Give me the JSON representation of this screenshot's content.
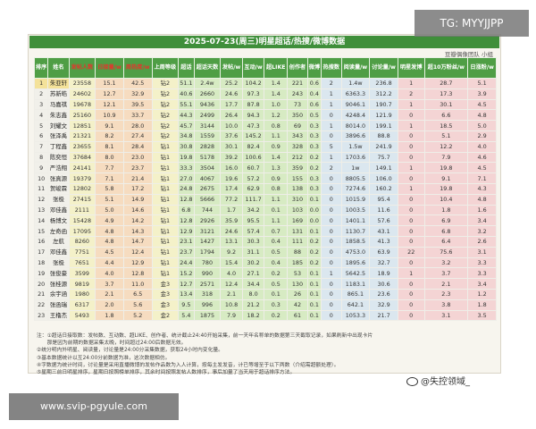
{
  "header": {
    "title": "2025-07-23(周三)明星超话/热搜/微博数据",
    "subtitle": "豆瓣偶像团队 小组"
  },
  "table": {
    "columns": [
      "排序",
      "姓名",
      "发帖人数",
      "日接量/w",
      "周热度/w",
      "上周等级",
      "超话",
      "超话天数",
      "发帖/w",
      "互动/w",
      "超LIKE",
      "创作者",
      "微博",
      "热搜数",
      "阅读量/w",
      "讨论量/w",
      "明星发博",
      "超10万粉丝/w",
      "日涨粉/w"
    ],
    "rows": [
      [
        "1",
        "朱亚轩",
        "23558",
        "15.1",
        "42.5",
        "钻2",
        "51.1",
        "2.4w",
        "25.2",
        "104.2",
        "1.4",
        "221",
        "0.6",
        "2",
        "1.4w",
        "236.8",
        "1",
        "28.7",
        "5.1"
      ],
      [
        "2",
        "苏新皓",
        "24602",
        "12.7",
        "32.9",
        "钻2",
        "40.6",
        "2660",
        "24.6",
        "97.3",
        "1.4",
        "243",
        "0.4",
        "1",
        "6363.3",
        "312.2",
        "2",
        "17.3",
        "3.9"
      ],
      [
        "3",
        "马嘉祺",
        "19678",
        "12.1",
        "39.5",
        "钻2",
        "55.1",
        "9436",
        "17.7",
        "87.8",
        "1.0",
        "73",
        "0.6",
        "1",
        "9046.1",
        "190.7",
        "1",
        "30.1",
        "4.5"
      ],
      [
        "4",
        "朱志鑫",
        "25160",
        "10.9",
        "33.7",
        "钻2",
        "44.3",
        "2499",
        "26.4",
        "94.3",
        "1.2",
        "350",
        "0.5",
        "0",
        "4248.4",
        "121.9",
        "0",
        "6.6",
        "4.8"
      ],
      [
        "5",
        "刘耀文",
        "12851",
        "9.1",
        "28.0",
        "钻2",
        "45.7",
        "3144",
        "10.0",
        "47.3",
        "0.8",
        "69",
        "0.3",
        "1",
        "8014.0",
        "199.1",
        "1",
        "18.5",
        "5.0"
      ],
      [
        "6",
        "张泽禹",
        "21321",
        "8.2",
        "27.4",
        "钻2",
        "34.8",
        "1559",
        "37.6",
        "145.2",
        "1.1",
        "343",
        "0.3",
        "0",
        "3896.6",
        "88.8",
        "0",
        "5.1",
        "2.9"
      ],
      [
        "7",
        "丁程鑫",
        "23655",
        "8.1",
        "28.4",
        "钻1",
        "30.8",
        "2828",
        "30.1",
        "82.4",
        "0.9",
        "328",
        "0.3",
        "5",
        "1.5w",
        "241.9",
        "0",
        "12.2",
        "4.0"
      ],
      [
        "8",
        "陈奕恒",
        "37684",
        "8.0",
        "23.0",
        "钻1",
        "19.8",
        "5178",
        "39.2",
        "100.6",
        "1.4",
        "212",
        "0.2",
        "1",
        "1703.6",
        "75.7",
        "0",
        "7.9",
        "4.6"
      ],
      [
        "9",
        "严浩翔",
        "24141",
        "7.7",
        "23.7",
        "钻1",
        "33.3",
        "3504",
        "16.0",
        "60.7",
        "1.3",
        "359",
        "0.2",
        "2",
        "1w",
        "149.1",
        "1",
        "19.8",
        "4.5"
      ],
      [
        "10",
        "张真源",
        "19379",
        "7.1",
        "21.4",
        "钻1",
        "27.0",
        "4067",
        "19.6",
        "57.2",
        "0.9",
        "155",
        "0.3",
        "0",
        "8805.5",
        "106.0",
        "0",
        "9.1",
        "7.1"
      ],
      [
        "11",
        "贺峻霖",
        "12802",
        "5.8",
        "17.2",
        "钻1",
        "24.8",
        "2675",
        "17.4",
        "62.9",
        "0.8",
        "138",
        "0.3",
        "0",
        "7274.6",
        "160.2",
        "1",
        "19.8",
        "4.3"
      ],
      [
        "12",
        "张极",
        "27415",
        "5.1",
        "14.9",
        "钻1",
        "12.8",
        "5666",
        "77.2",
        "111.7",
        "1.1",
        "310",
        "0.1",
        "0",
        "1015.9",
        "95.4",
        "0",
        "10.4",
        "4.8"
      ],
      [
        "13",
        "邓佳鑫",
        "2111",
        "5.0",
        "14.6",
        "钻1",
        "6.8",
        "744",
        "1.7",
        "34.2",
        "0.1",
        "103",
        "0.0",
        "0",
        "1003.5",
        "11.6",
        "0",
        "1.8",
        "1.6"
      ],
      [
        "14",
        "杨博文",
        "15428",
        "4.9",
        "14.2",
        "钻1",
        "12.8",
        "2926",
        "35.9",
        "95.5",
        "1.1",
        "169",
        "0.0",
        "0",
        "1401.1",
        "57.6",
        "0",
        "6.9",
        "3.4"
      ],
      [
        "15",
        "左奇函",
        "17095",
        "4.8",
        "14.3",
        "钻1",
        "12.9",
        "3121",
        "24.6",
        "57.4",
        "0.7",
        "131",
        "0.1",
        "0",
        "1130.7",
        "43.1",
        "0",
        "6.8",
        "3.2"
      ],
      [
        "16",
        "左航",
        "8260",
        "4.8",
        "14.7",
        "钻1",
        "23.1",
        "1427",
        "13.1",
        "30.3",
        "0.4",
        "111",
        "0.2",
        "0",
        "1858.5",
        "41.3",
        "0",
        "6.4",
        "2.6"
      ],
      [
        "17",
        "邓佳鑫",
        "7751",
        "4.5",
        "12.4",
        "钻1",
        "23.7",
        "1794",
        "9.2",
        "31.1",
        "0.5",
        "88",
        "0.2",
        "0",
        "4753.0",
        "63.9",
        "22",
        "75.6",
        "3.1"
      ],
      [
        "18",
        "张极",
        "7651",
        "4.4",
        "12.9",
        "钻1",
        "24.4",
        "780",
        "15.4",
        "30.2",
        "0.4",
        "185",
        "0.2",
        "0",
        "1895.6",
        "32.7",
        "0",
        "3.2",
        "3.3"
      ],
      [
        "19",
        "张俊豪",
        "3599",
        "4.0",
        "12.8",
        "钻1",
        "15.2",
        "990",
        "4.0",
        "27.1",
        "0.2",
        "53",
        "0.1",
        "1",
        "5642.5",
        "18.9",
        "1",
        "3.7",
        "3.3"
      ],
      [
        "20",
        "张桂源",
        "9819",
        "3.7",
        "11.0",
        "金3",
        "12.7",
        "2571",
        "12.4",
        "34.4",
        "0.5",
        "130",
        "0.1",
        "0",
        "1183.1",
        "30.6",
        "0",
        "2.1",
        "3.4"
      ],
      [
        "21",
        "余宇涵",
        "1980",
        "2.1",
        "6.5",
        "金3",
        "13.4",
        "318",
        "2.1",
        "8.0",
        "0.1",
        "26",
        "0.1",
        "0",
        "865.1",
        "23.6",
        "0",
        "2.3",
        "1.2"
      ],
      [
        "22",
        "张函瑞",
        "6317",
        "2.0",
        "5.6",
        "金3",
        "9.5",
        "996",
        "10.8",
        "21.2",
        "0.3",
        "42",
        "0.1",
        "0",
        "642.1",
        "32.9",
        "0",
        "3.8",
        "1.8"
      ],
      [
        "23",
        "王橹杰",
        "5493",
        "1.8",
        "5.2",
        "金2",
        "5.4",
        "1875",
        "7.9",
        "18.2",
        "0.2",
        "61",
        "0.1",
        "0",
        "1053.3",
        "21.7",
        "0",
        "3.1",
        "3.5"
      ]
    ]
  },
  "notes": [
    "注：①超话日接取数：发帖数、互动数、超LIKE、创作者、统计截止24:40开始采集，前一天年名称单的数据第三天截取记录，如果刷新中出现卡片",
    "　　那是因为前期的数据采集太晚，时间超过24:00后数据无效。",
    "②统分明内外明星、阅读量，讨论量是24:00分采集数据，获取24小时内变化量。",
    "③基本数据统计以互24:00分前数据为准，这次数据相仿。",
    "④字数据为统计时间，讨论量是采用直播微博的发帖作品数为入人计算，按每主发发音，计已等增至于以下两数（介绍需超额处理）。",
    "⑤星期三前日明星排序，星期日按照榜单排序，其余时间按照发帖人数排序，事后加量了当天用于超话排序方法。"
  ],
  "overlays": {
    "tg_label": "TG: MYYJJPP",
    "watermark": "@失控领域_",
    "site": "www.svip-pgyule.com"
  }
}
